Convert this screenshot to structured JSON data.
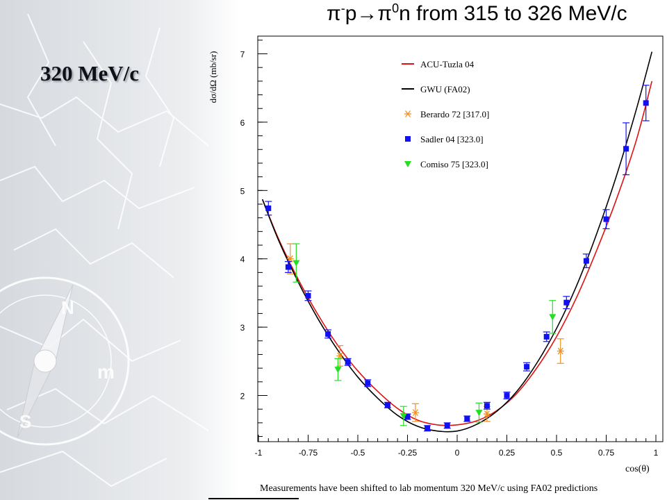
{
  "slide": {
    "title": "320 MeV/c"
  },
  "chart_data": {
    "type": "scatter",
    "title_parts": {
      "pi": "π",
      "minus": "-",
      "p_arrow": "p→",
      "pi2": "π",
      "zero": "0",
      "rest": "n from 315 to 326 MeV/c"
    },
    "xlabel": "cos(θ)",
    "ylabel": "dσ/dΩ (mb/sr)",
    "footnote": "Measurements have been shifted to lab momentum 320 MeV/c using FA02 predictions",
    "xlim": [
      -1,
      1
    ],
    "ylim": [
      1.25,
      7.3
    ],
    "xticks": [
      -1,
      -0.75,
      -0.5,
      -0.25,
      0,
      0.25,
      0.5,
      0.75,
      1
    ],
    "xtick_labels": [
      "-1",
      "-0.75",
      "-0.5",
      "-0.25",
      "0",
      "0.25",
      "0.5",
      "0.75",
      "1"
    ],
    "yticks": [
      2,
      3,
      4,
      5,
      6,
      7
    ],
    "ytick_labels": [
      "2",
      "3",
      "4",
      "5",
      "6",
      "7"
    ],
    "grid": false,
    "legend_position": "top-center",
    "curves": [
      {
        "name": "ACU-Tuzla 04",
        "color": "#e01010",
        "x": [
          -0.98,
          -0.9,
          -0.8,
          -0.7,
          -0.6,
          -0.5,
          -0.4,
          -0.3,
          -0.2,
          -0.1,
          0,
          0.1,
          0.2,
          0.3,
          0.4,
          0.5,
          0.6,
          0.7,
          0.8,
          0.9,
          0.98
        ],
        "y": [
          4.87,
          4.3,
          3.7,
          3.18,
          2.73,
          2.36,
          2.06,
          1.81,
          1.64,
          1.57,
          1.57,
          1.63,
          1.78,
          2.03,
          2.4,
          2.86,
          3.43,
          4.11,
          4.86,
          5.72,
          6.6
        ]
      },
      {
        "name": "GWU (FA02)",
        "color": "#000000",
        "x": [
          -0.98,
          -0.9,
          -0.8,
          -0.7,
          -0.6,
          -0.5,
          -0.4,
          -0.3,
          -0.2,
          -0.1,
          0,
          0.1,
          0.2,
          0.3,
          0.4,
          0.5,
          0.6,
          0.7,
          0.8,
          0.9,
          0.98
        ],
        "y": [
          4.87,
          4.28,
          3.66,
          3.12,
          2.66,
          2.27,
          1.96,
          1.71,
          1.55,
          1.48,
          1.48,
          1.58,
          1.77,
          2.06,
          2.47,
          2.98,
          3.6,
          4.35,
          5.2,
          6.17,
          7.03
        ]
      }
    ],
    "series": [
      {
        "name": "Berardo 72  [317.0]",
        "marker": "asterisk",
        "color": "#f09020",
        "x": [
          -0.84,
          -0.59,
          -0.21,
          0.15,
          0.52
        ],
        "y": [
          4.0,
          2.58,
          1.75,
          1.73,
          2.65
        ],
        "err": [
          0.22,
          0.15,
          0.13,
          0.11,
          0.18
        ]
      },
      {
        "name": "Sadler 04  [323.0]",
        "marker": "square",
        "color": "#1010f0",
        "x": [
          -0.95,
          -0.85,
          -0.75,
          -0.65,
          -0.55,
          -0.45,
          -0.35,
          -0.25,
          -0.15,
          -0.05,
          0.05,
          0.15,
          0.25,
          0.35,
          0.45,
          0.55,
          0.65,
          0.75,
          0.85,
          0.95
        ],
        "y": [
          4.74,
          3.88,
          3.46,
          2.9,
          2.49,
          2.18,
          1.86,
          1.69,
          1.52,
          1.56,
          1.66,
          1.85,
          2.0,
          2.42,
          2.86,
          3.36,
          3.97,
          4.58,
          5.61,
          6.28
        ],
        "err": [
          0.1,
          0.08,
          0.07,
          0.06,
          0.05,
          0.05,
          0.04,
          0.04,
          0.04,
          0.04,
          0.04,
          0.05,
          0.05,
          0.06,
          0.07,
          0.09,
          0.1,
          0.14,
          0.38,
          0.26
        ]
      },
      {
        "name": "Comiso 75  [323.0]",
        "marker": "triangle-down",
        "color": "#20e020",
        "x": [
          -0.81,
          -0.6,
          -0.27,
          0.11,
          0.48
        ],
        "y": [
          3.94,
          2.38,
          1.7,
          1.75,
          3.15
        ],
        "err": [
          0.28,
          0.16,
          0.14,
          0.14,
          0.24
        ]
      }
    ]
  }
}
